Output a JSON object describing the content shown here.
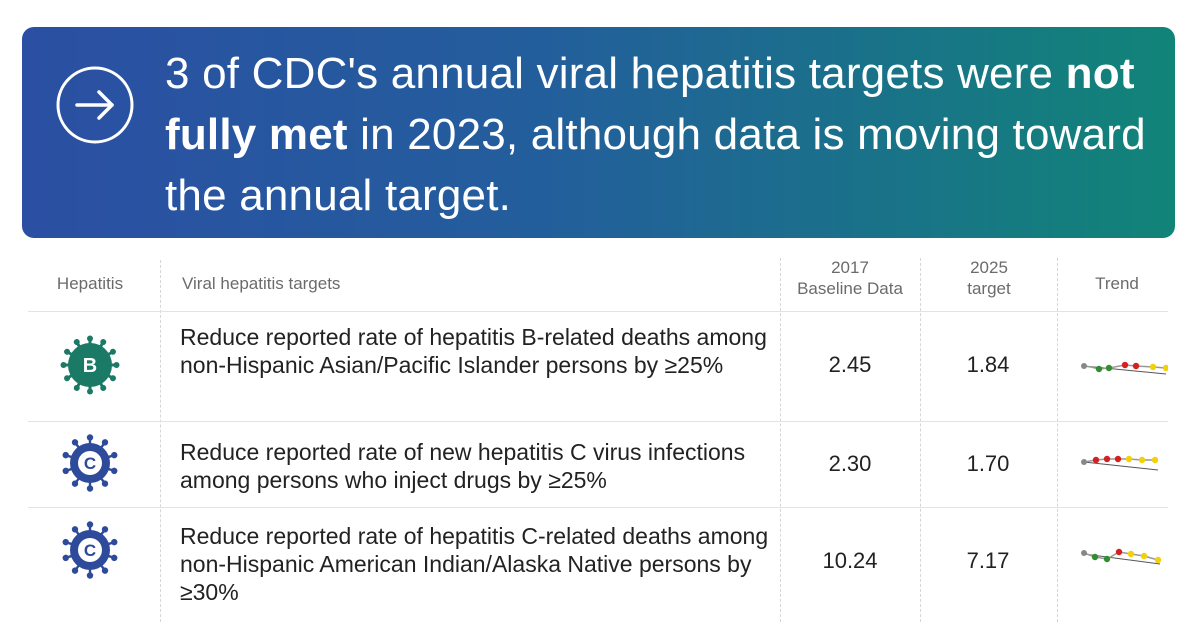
{
  "headline": {
    "before": "3 of CDC's annual viral hepatitis targets were ",
    "bold": "not fully met",
    "after": " in 2023, although data is moving toward the annual target."
  },
  "table": {
    "headers": {
      "hepatitis": "Hepatitis",
      "targets": "Viral hepatitis targets",
      "baseline_line1": "2017",
      "baseline_line2": "Baseline Data",
      "target_line1": "2025",
      "target_line2": "target",
      "trend": "Trend"
    },
    "rows": [
      {
        "badge_letter": "B",
        "badge_color": "#1a7a66",
        "target": "Reduce reported rate of hepatitis B-related deaths among non-Hispanic Asian/Pacific Islander persons by ≥25%",
        "baseline": "2.45",
        "goal": "1.84"
      },
      {
        "badge_letter": "C",
        "badge_color": "#2e4a9b",
        "target": "Reduce reported rate of new hepatitis C virus infections among persons who inject drugs by ≥25%",
        "baseline": "2.30",
        "goal": "1.70"
      },
      {
        "badge_letter": "C",
        "badge_color": "#2e4a9b",
        "target": "Reduce reported rate of hepatitis C-related deaths among non-Hispanic American Indian/Alaska Native persons by ≥30%",
        "baseline": "10.24",
        "goal": "7.17"
      }
    ]
  },
  "colors": {
    "banner_start": "#2b4fa3",
    "banner_end": "#118478",
    "trend_gray": "#888888",
    "trend_green": "#2f8f2f",
    "trend_red": "#d42020",
    "trend_yellow": "#f2d10a"
  }
}
